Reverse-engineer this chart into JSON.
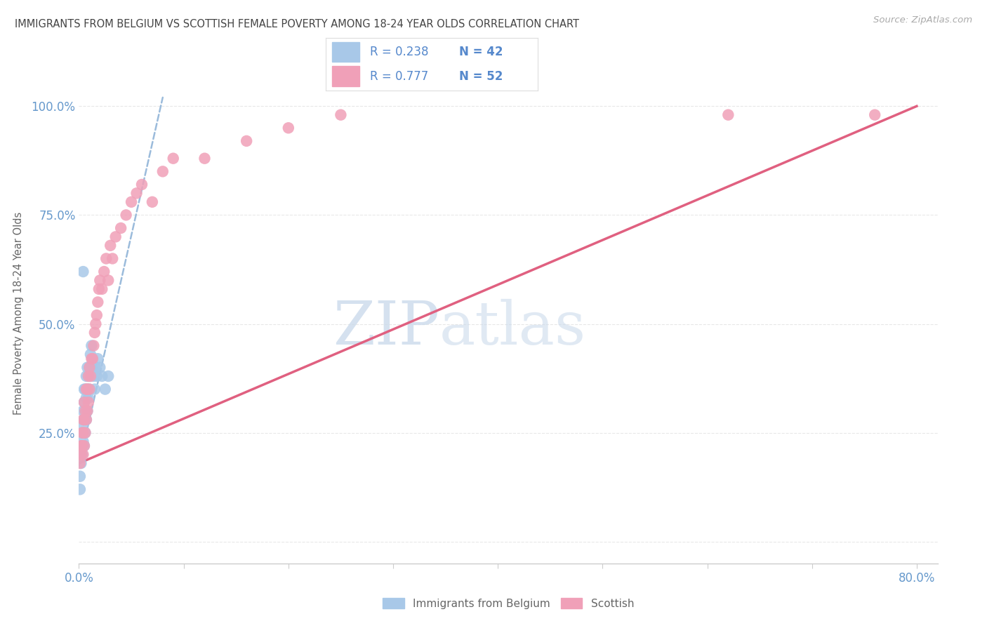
{
  "title": "IMMIGRANTS FROM BELGIUM VS SCOTTISH FEMALE POVERTY AMONG 18-24 YEAR OLDS CORRELATION CHART",
  "source": "Source: ZipAtlas.com",
  "ylabel": "Female Poverty Among 18-24 Year Olds",
  "xlim": [
    0.0,
    0.82
  ],
  "ylim": [
    -0.05,
    1.1
  ],
  "r1": 0.238,
  "n1": 42,
  "r2": 0.777,
  "n2": 52,
  "series1_label": "Immigrants from Belgium",
  "series2_label": "Scottish",
  "series1_color": "#a8c8e8",
  "series2_color": "#f0a0b8",
  "line1_color": "#90b4d8",
  "line2_color": "#e06080",
  "tick_color": "#6699cc",
  "title_color": "#444444",
  "axis_label_color": "#666666",
  "grid_color": "#e8e8e8",
  "background": "#ffffff",
  "s1_x": [
    0.001,
    0.001,
    0.002,
    0.002,
    0.003,
    0.003,
    0.003,
    0.004,
    0.004,
    0.004,
    0.005,
    0.005,
    0.005,
    0.005,
    0.006,
    0.006,
    0.006,
    0.007,
    0.007,
    0.007,
    0.008,
    0.008,
    0.008,
    0.009,
    0.009,
    0.01,
    0.01,
    0.011,
    0.011,
    0.012,
    0.012,
    0.013,
    0.014,
    0.015,
    0.016,
    0.017,
    0.018,
    0.02,
    0.022,
    0.025,
    0.028,
    0.004
  ],
  "s1_y": [
    0.15,
    0.12,
    0.2,
    0.18,
    0.22,
    0.25,
    0.2,
    0.23,
    0.27,
    0.3,
    0.22,
    0.28,
    0.32,
    0.35,
    0.25,
    0.3,
    0.35,
    0.28,
    0.33,
    0.38,
    0.3,
    0.35,
    0.4,
    0.33,
    0.38,
    0.35,
    0.4,
    0.38,
    0.43,
    0.4,
    0.45,
    0.42,
    0.38,
    0.35,
    0.4,
    0.38,
    0.42,
    0.4,
    0.38,
    0.35,
    0.38,
    0.62
  ],
  "s2_x": [
    0.001,
    0.002,
    0.002,
    0.003,
    0.003,
    0.004,
    0.004,
    0.004,
    0.005,
    0.005,
    0.005,
    0.006,
    0.006,
    0.007,
    0.007,
    0.008,
    0.008,
    0.009,
    0.009,
    0.01,
    0.01,
    0.011,
    0.012,
    0.013,
    0.014,
    0.015,
    0.016,
    0.017,
    0.018,
    0.019,
    0.02,
    0.022,
    0.024,
    0.026,
    0.028,
    0.03,
    0.032,
    0.035,
    0.04,
    0.045,
    0.05,
    0.055,
    0.06,
    0.07,
    0.08,
    0.09,
    0.12,
    0.16,
    0.2,
    0.25,
    0.62,
    0.76
  ],
  "s2_y": [
    0.18,
    0.2,
    0.22,
    0.22,
    0.25,
    0.2,
    0.25,
    0.28,
    0.22,
    0.28,
    0.32,
    0.25,
    0.3,
    0.28,
    0.35,
    0.3,
    0.35,
    0.32,
    0.38,
    0.35,
    0.4,
    0.38,
    0.42,
    0.42,
    0.45,
    0.48,
    0.5,
    0.52,
    0.55,
    0.58,
    0.6,
    0.58,
    0.62,
    0.65,
    0.6,
    0.68,
    0.65,
    0.7,
    0.72,
    0.75,
    0.78,
    0.8,
    0.82,
    0.78,
    0.85,
    0.88,
    0.88,
    0.92,
    0.95,
    0.98,
    0.98,
    0.98
  ],
  "line1_x": [
    0.0,
    0.08
  ],
  "line1_y": [
    0.175,
    1.02
  ],
  "line2_x": [
    0.0,
    0.8
  ],
  "line2_y": [
    0.18,
    1.0
  ]
}
